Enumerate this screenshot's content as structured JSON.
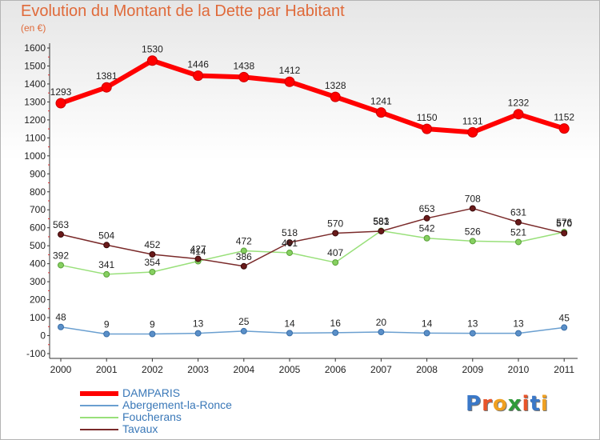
{
  "header": {
    "title": "Evolution du Montant de la Dette par Habitant",
    "subtitle": "(en €)"
  },
  "logo": {
    "text": "Proxiti",
    "letters": [
      "P",
      "r",
      "o",
      "x",
      "i",
      "t",
      "i"
    ],
    "letter_colors": [
      "#3a78c8",
      "#e8542a",
      "#f0a020",
      "#2f9a3a",
      "#e8542a",
      "#3a78c8",
      "#f0a020"
    ]
  },
  "chart_data": {
    "type": "line",
    "title": "Evolution du Montant de la Dette par Habitant",
    "subtitle": "(en €)",
    "x": [
      "2000",
      "2001",
      "2002",
      "2003",
      "2004",
      "2005",
      "2006",
      "2007",
      "2008",
      "2009",
      "2010",
      "2011"
    ],
    "ylim": [
      -100,
      1600
    ],
    "yticks": [
      -100,
      0,
      100,
      200,
      300,
      400,
      500,
      600,
      700,
      800,
      900,
      1000,
      1100,
      1200,
      1300,
      1400,
      1500,
      1600
    ],
    "grid": false,
    "legend_position": "bottom-left",
    "series": [
      {
        "name": "DAMPARIS",
        "color": "#ff0000",
        "values": [
          1293,
          1381,
          1530,
          1446,
          1438,
          1412,
          1328,
          1241,
          1150,
          1131,
          1232,
          1152
        ]
      },
      {
        "name": "Abergement-la-Ronce",
        "color": "#6a9fd0",
        "values": [
          48,
          9,
          9,
          13,
          25,
          14,
          16,
          20,
          14,
          13,
          13,
          45
        ]
      },
      {
        "name": "Foucherans",
        "color": "#99e07a",
        "values": [
          392,
          341,
          354,
          414,
          472,
          461,
          407,
          583,
          542,
          526,
          521,
          576
        ]
      },
      {
        "name": "Tavaux",
        "color": "#7a2a2a",
        "values": [
          563,
          504,
          452,
          427,
          386,
          518,
          570,
          581,
          653,
          708,
          631,
          570
        ]
      }
    ]
  }
}
